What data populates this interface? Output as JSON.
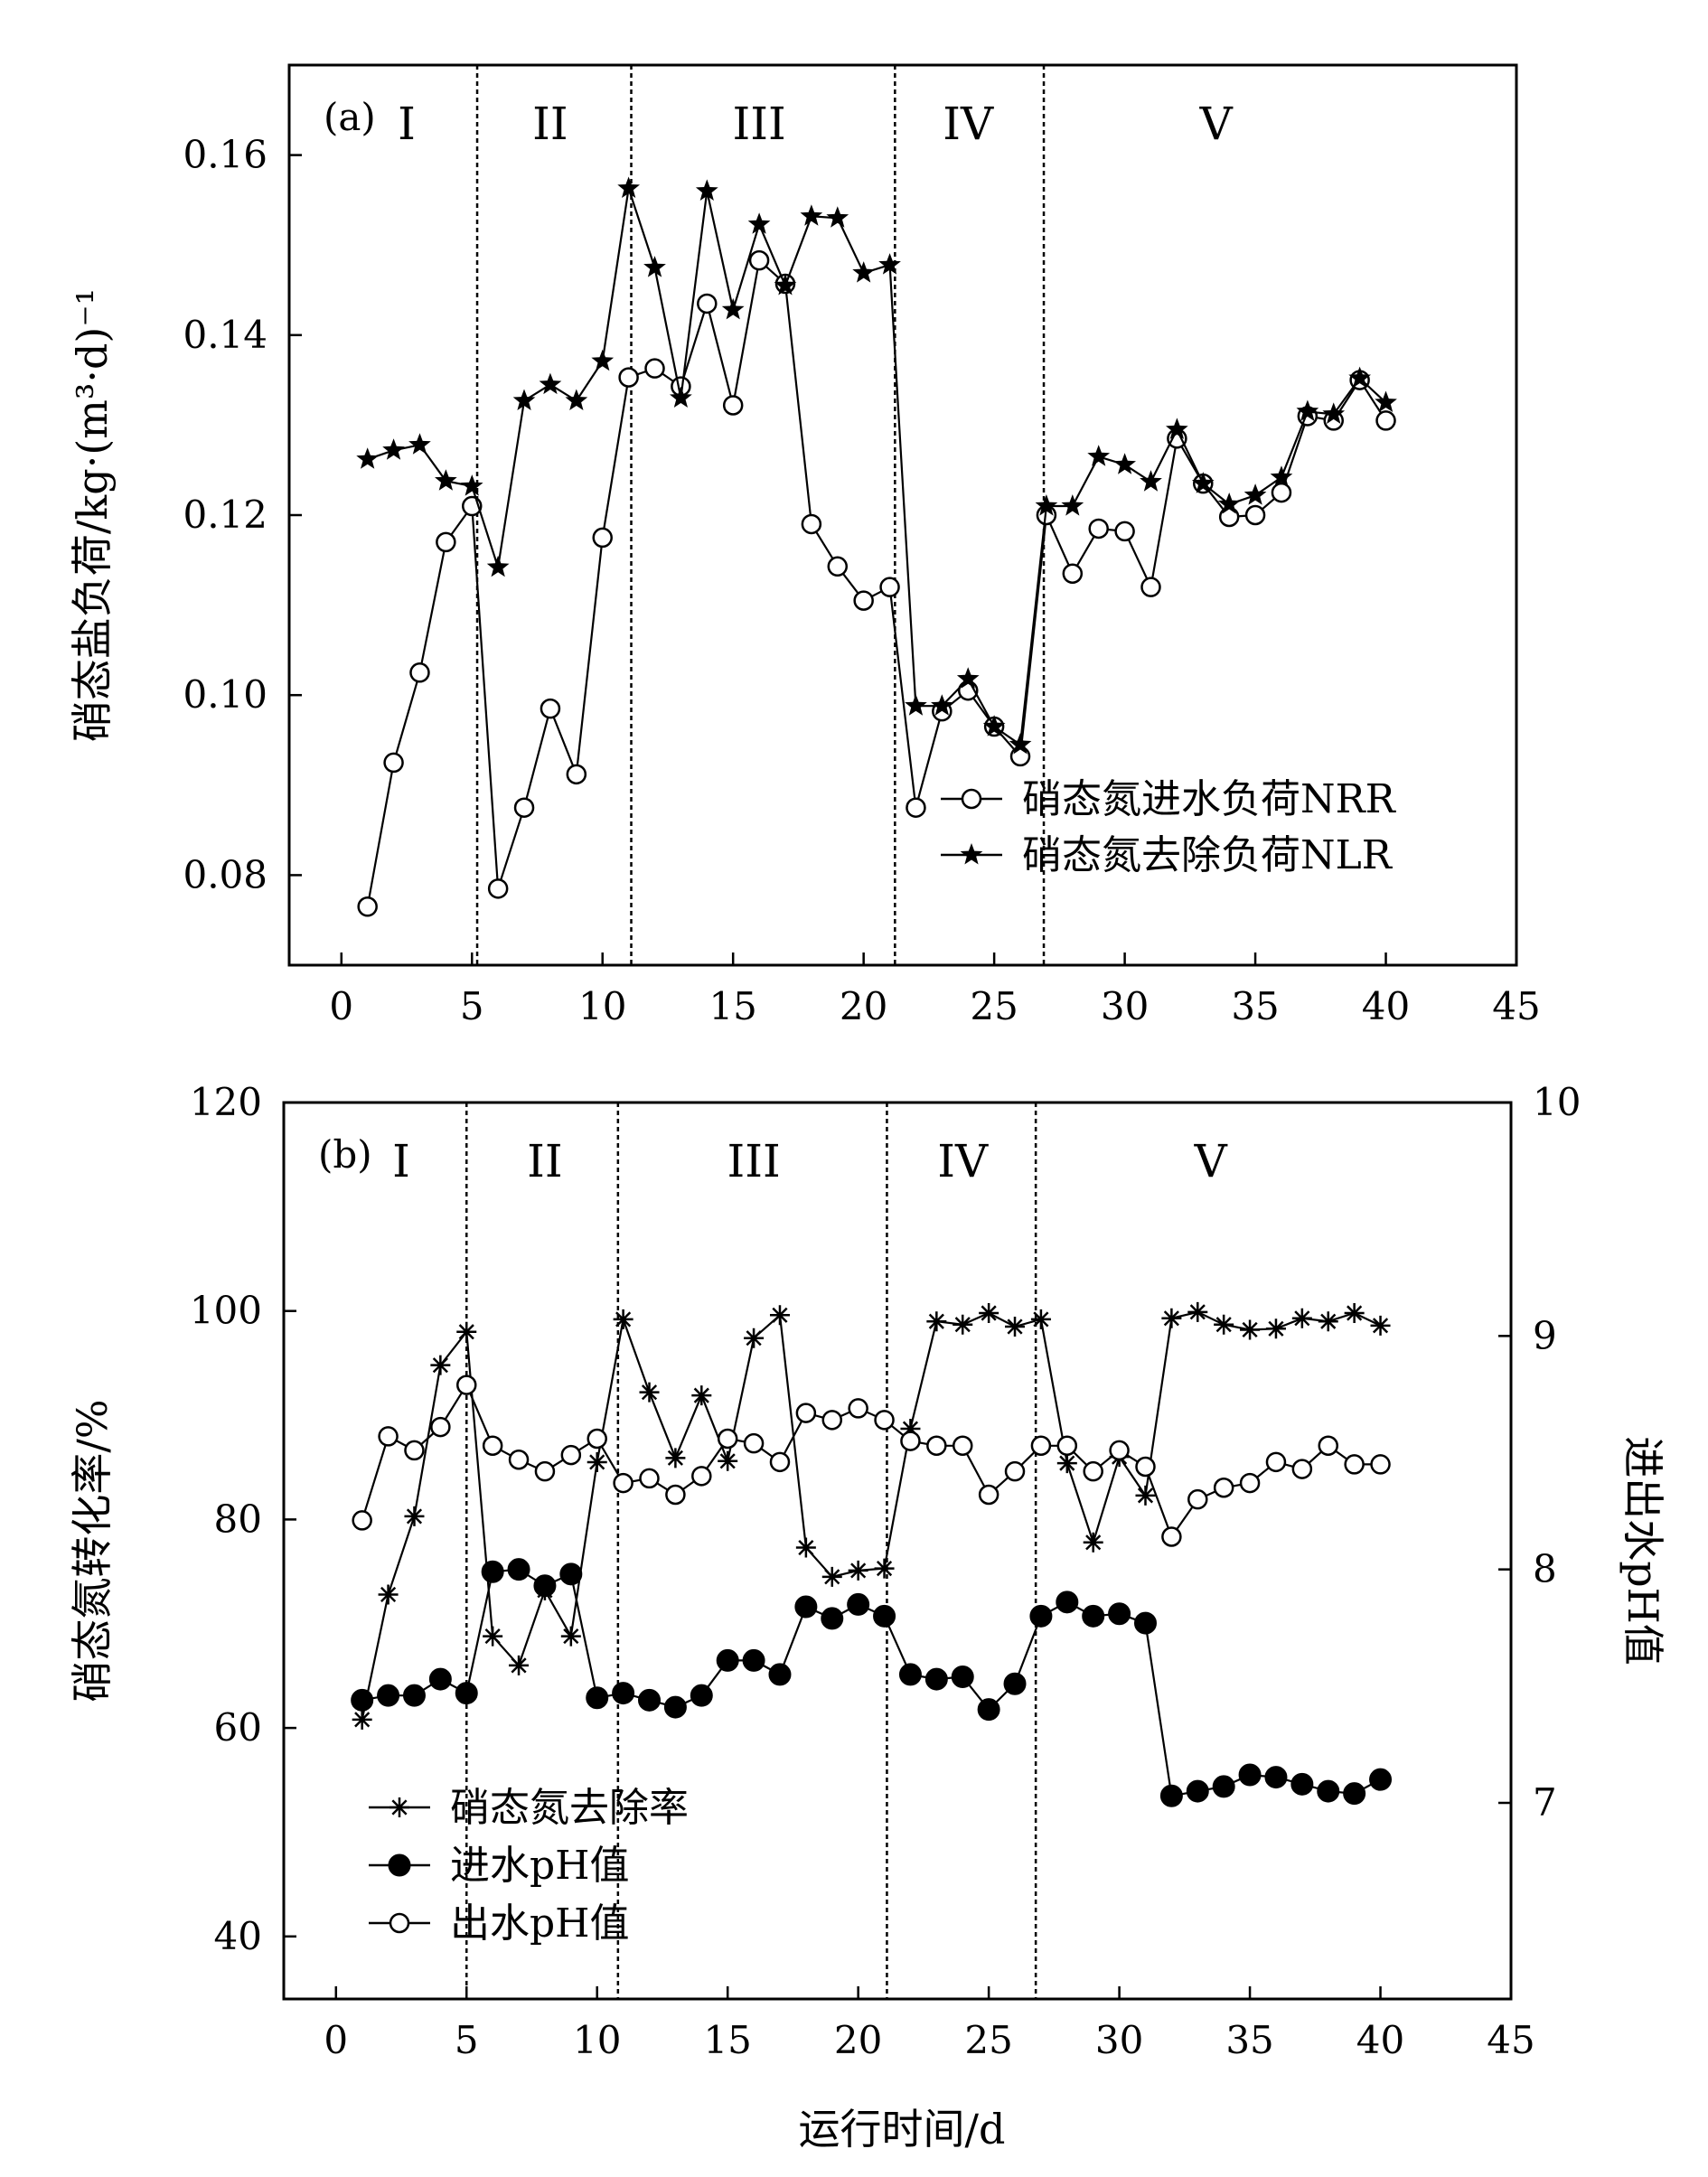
{
  "chart_data": [
    {
      "type": "line",
      "panel_label": "(a)",
      "ylabel": "硝态盐负荷/kg·(m³·d)⁻¹",
      "ylim": [
        0.07,
        0.17
      ],
      "yticks": [
        0.08,
        0.1,
        0.12,
        0.14,
        0.16
      ],
      "ytick_labels": [
        "0.08",
        "0.10",
        "0.12",
        "0.14",
        "0.16"
      ],
      "xlim": [
        -2,
        45
      ],
      "xticks": [
        0,
        5,
        10,
        15,
        20,
        25,
        30,
        35,
        40,
        45
      ],
      "xtick_labels": [
        "0",
        "5",
        "10",
        "15",
        "20",
        "25",
        "30",
        "35",
        "40",
        "45"
      ],
      "phase_boundaries": [
        5.2,
        11.1,
        21.2,
        26.9
      ],
      "phases": [
        {
          "label": "I",
          "x": 2.5
        },
        {
          "label": "II",
          "x": 8
        },
        {
          "label": "III",
          "x": 16
        },
        {
          "label": "IV",
          "x": 24
        },
        {
          "label": "V",
          "x": 33.5
        }
      ],
      "legend_position": "lower-right",
      "series": [
        {
          "name": "硝态氮进水负荷NRR",
          "marker": "open-circle",
          "x": [
            1,
            2,
            3,
            4,
            5,
            6,
            7,
            8,
            9,
            10,
            11,
            12,
            13,
            14,
            15,
            16,
            17,
            18,
            19,
            20,
            21,
            22,
            23,
            24,
            25,
            26,
            27,
            28,
            29,
            30,
            31,
            32,
            33,
            34,
            35,
            36,
            37,
            38,
            39,
            40
          ],
          "values": [
            0.0765,
            0.0925,
            0.1025,
            0.117,
            0.121,
            0.0785,
            0.0875,
            0.0985,
            0.0912,
            0.1175,
            0.1353,
            0.1363,
            0.1343,
            0.1435,
            0.1322,
            0.1483,
            0.1457,
            0.119,
            0.1143,
            0.1105,
            0.112,
            0.0875,
            0.0982,
            0.1005,
            0.0965,
            0.0932,
            0.12,
            0.1135,
            0.1185,
            0.1182,
            0.112,
            0.1285,
            0.1235,
            0.1198,
            0.12,
            0.1225,
            0.131,
            0.1305,
            0.135,
            0.1305
          ]
        },
        {
          "name": "硝态氮去除负荷NLR",
          "marker": "filled-star",
          "x": [
            1,
            2,
            3,
            4,
            5,
            6,
            7,
            8,
            9,
            10,
            11,
            12,
            13,
            14,
            15,
            16,
            17,
            18,
            19,
            20,
            21,
            22,
            23,
            24,
            25,
            26,
            27,
            28,
            29,
            30,
            31,
            32,
            33,
            34,
            35,
            36,
            37,
            38,
            39,
            40
          ],
          "values": [
            0.1262,
            0.1272,
            0.1278,
            0.1238,
            0.1232,
            0.1142,
            0.1327,
            0.1345,
            0.1327,
            0.1371,
            0.1563,
            0.1475,
            0.133,
            0.156,
            0.1428,
            0.1523,
            0.1455,
            0.1532,
            0.153,
            0.1469,
            0.1478,
            0.0988,
            0.0988,
            0.1018,
            0.0965,
            0.0945,
            0.121,
            0.121,
            0.1265,
            0.1256,
            0.1237,
            0.1295,
            0.1235,
            0.1212,
            0.1222,
            0.1242,
            0.1315,
            0.1312,
            0.1352,
            0.1325
          ]
        }
      ]
    },
    {
      "type": "line",
      "panel_label": "(b)",
      "xlabel": "运行时间/d",
      "ylabel": "硝态氮转化率/%",
      "ylabel_right": "进出水pH值",
      "ylim": [
        34,
        120
      ],
      "yticks": [
        40,
        60,
        80,
        100,
        120
      ],
      "ytick_labels": [
        "40",
        "60",
        "80",
        "100",
        "120"
      ],
      "ylim_right": [
        6.16,
        10
      ],
      "yticks_right": [
        7,
        8,
        9,
        10
      ],
      "ytick_labels_right": [
        "7",
        "8",
        "9",
        "10"
      ],
      "xlim": [
        -2,
        45
      ],
      "xticks": [
        0,
        5,
        10,
        15,
        20,
        25,
        30,
        35,
        40,
        45
      ],
      "xtick_labels": [
        "0",
        "5",
        "10",
        "15",
        "20",
        "25",
        "30",
        "35",
        "40",
        "45"
      ],
      "phase_boundaries": [
        5.0,
        10.8,
        21.1,
        26.8
      ],
      "phases": [
        {
          "label": "I",
          "x": 2.5
        },
        {
          "label": "II",
          "x": 8
        },
        {
          "label": "III",
          "x": 16
        },
        {
          "label": "IV",
          "x": 24
        },
        {
          "label": "V",
          "x": 33.5
        }
      ],
      "legend_position": "lower-left",
      "series": [
        {
          "name": "硝态氮去除率",
          "marker": "asterisk",
          "axis": "left",
          "x": [
            1,
            2,
            3,
            4,
            5,
            6,
            7,
            8,
            9,
            10,
            11,
            12,
            13,
            14,
            15,
            16,
            17,
            18,
            19,
            20,
            21,
            22,
            23,
            24,
            25,
            26,
            27,
            28,
            29,
            30,
            31,
            32,
            33,
            34,
            35,
            36,
            37,
            38,
            39,
            40
          ],
          "values": [
            60.8,
            72.8,
            80.3,
            94.8,
            98.0,
            68.8,
            66.0,
            73.2,
            68.8,
            85.5,
            99.2,
            92.2,
            85.9,
            91.9,
            85.6,
            97.4,
            99.6,
            77.3,
            74.5,
            75.1,
            75.3,
            88.7,
            99.0,
            98.7,
            99.8,
            98.5,
            99.2,
            85.4,
            77.8,
            86.0,
            82.3,
            99.3,
            99.9,
            98.7,
            98.2,
            98.3,
            99.3,
            99.0,
            99.8,
            98.6
          ]
        },
        {
          "name": "进水pH值",
          "marker": "filled-circle",
          "axis": "right",
          "x": [
            1,
            2,
            3,
            4,
            5,
            6,
            7,
            8,
            9,
            10,
            11,
            12,
            13,
            14,
            15,
            16,
            17,
            18,
            19,
            20,
            21,
            22,
            23,
            24,
            25,
            26,
            27,
            28,
            29,
            30,
            31,
            32,
            33,
            34,
            35,
            36,
            37,
            38,
            39,
            40
          ],
          "values": [
            7.44,
            7.46,
            7.46,
            7.53,
            7.47,
            7.99,
            8.0,
            7.93,
            7.98,
            7.45,
            7.47,
            7.44,
            7.41,
            7.46,
            7.61,
            7.61,
            7.55,
            7.84,
            7.79,
            7.85,
            7.8,
            7.55,
            7.53,
            7.54,
            7.4,
            7.51,
            7.8,
            7.86,
            7.8,
            7.81,
            7.77,
            7.03,
            7.05,
            7.07,
            7.12,
            7.11,
            7.08,
            7.05,
            7.04,
            7.1
          ]
        },
        {
          "name": "出水pH值",
          "marker": "open-circle",
          "axis": "right",
          "x": [
            1,
            2,
            3,
            4,
            5,
            6,
            7,
            8,
            9,
            10,
            11,
            12,
            13,
            14,
            15,
            16,
            17,
            18,
            19,
            20,
            21,
            22,
            23,
            24,
            25,
            26,
            27,
            28,
            29,
            30,
            31,
            32,
            33,
            34,
            35,
            36,
            37,
            38,
            39,
            40
          ],
          "values": [
            8.21,
            8.57,
            8.51,
            8.61,
            8.79,
            8.53,
            8.47,
            8.42,
            8.49,
            8.56,
            8.37,
            8.39,
            8.32,
            8.4,
            8.56,
            8.54,
            8.46,
            8.67,
            8.64,
            8.69,
            8.64,
            8.55,
            8.53,
            8.53,
            8.32,
            8.42,
            8.53,
            8.53,
            8.42,
            8.51,
            8.44,
            8.14,
            8.3,
            8.35,
            8.37,
            8.46,
            8.43,
            8.53,
            8.45,
            8.45
          ]
        }
      ]
    }
  ]
}
